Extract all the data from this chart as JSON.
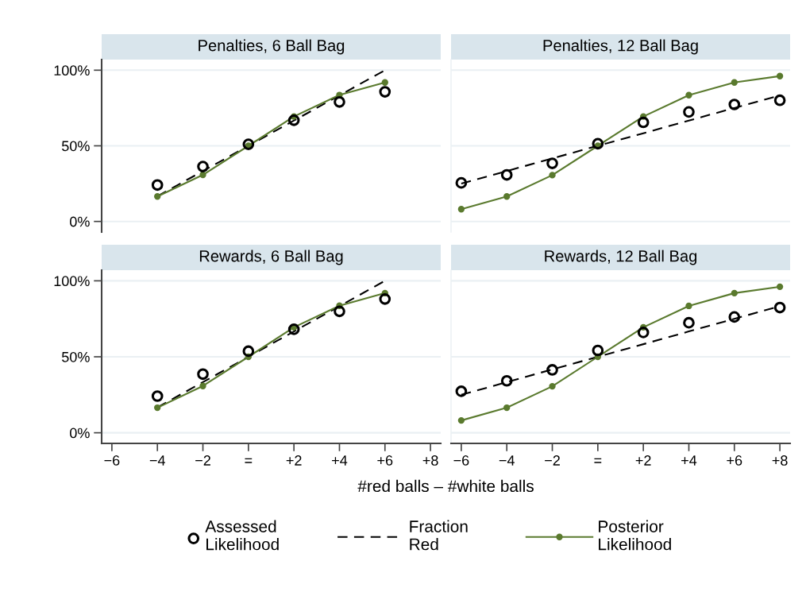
{
  "chart_data": [
    {
      "type": "line",
      "title": "Penalties, 6 Ball Bag",
      "x": [
        -4,
        -2,
        0,
        2,
        4,
        6
      ],
      "xlim": [
        -6.45,
        8.45
      ],
      "ylim": [
        -7,
        107
      ],
      "yticks": [
        {
          "value": 0,
          "label": "0%"
        },
        {
          "value": 50,
          "label": "50%"
        },
        {
          "value": 100,
          "label": "100%"
        }
      ],
      "grid": "y",
      "tick_labels": "y",
      "series": [
        {
          "type": "scatter",
          "marker": "circle",
          "color": "#000000",
          "values": [
            24.1,
            36.3,
            51,
            66.9,
            79,
            85.7
          ]
        },
        {
          "type": "line",
          "line_style": "dashed",
          "marker": "none",
          "color": "#000000",
          "values": [
            16.7,
            33.3,
            50,
            66.7,
            83.3,
            100
          ]
        },
        {
          "type": "line",
          "line_style": "solid",
          "marker": "circle",
          "color": "#5a7a2e",
          "values": [
            16.5,
            30.8,
            50,
            69.4,
            83.6,
            91.9
          ]
        }
      ]
    },
    {
      "type": "line",
      "title": "Penalties, 12 Ball Bag",
      "x": [
        -6,
        -4,
        -2,
        0,
        2,
        4,
        6,
        8
      ],
      "xlim": [
        -6.45,
        8.45
      ],
      "ylim": [
        -7,
        107
      ],
      "yticks": [
        {
          "value": 0,
          "label": null
        },
        {
          "value": 50,
          "label": null
        },
        {
          "value": 100,
          "label": null
        }
      ],
      "grid": "y",
      "tick_labels": false,
      "series": [
        {
          "type": "scatter",
          "marker": "circle",
          "color": "#000000",
          "values": [
            25.5,
            30.8,
            38.4,
            51.4,
            65.5,
            72.4,
            77.3,
            80.1
          ]
        },
        {
          "type": "line",
          "line_style": "dashed",
          "marker": "none",
          "color": "#000000",
          "values": [
            25,
            33.3,
            41.7,
            50,
            58.3,
            66.7,
            75,
            83.3
          ]
        },
        {
          "type": "line",
          "line_style": "solid",
          "marker": "circle",
          "color": "#5a7a2e",
          "values": [
            8.1,
            16.5,
            30.6,
            50,
            69.4,
            83.5,
            91.9,
            96.1
          ]
        }
      ]
    },
    {
      "type": "line",
      "title": "Rewards, 6 Ball Bag",
      "xlabel": "#red balls – #white balls",
      "x": [
        -4,
        -2,
        0,
        2,
        4,
        6
      ],
      "xlim": [
        -6.45,
        8.45
      ],
      "ylim": [
        -7,
        107
      ],
      "xticks": [
        {
          "value": -6,
          "label": "−6"
        },
        {
          "value": -4,
          "label": "−4"
        },
        {
          "value": -2,
          "label": "−2"
        },
        {
          "value": 0,
          "label": "="
        },
        {
          "value": 2,
          "label": "+2"
        },
        {
          "value": 4,
          "label": "+4"
        },
        {
          "value": 6,
          "label": "+6"
        },
        {
          "value": 8,
          "label": "+8"
        }
      ],
      "yticks": [
        {
          "value": 0,
          "label": "0%"
        },
        {
          "value": 50,
          "label": "50%"
        },
        {
          "value": 100,
          "label": "100%"
        }
      ],
      "grid": "y",
      "series": [
        {
          "type": "scatter",
          "marker": "circle",
          "color": "#000000",
          "values": [
            24.1,
            38.6,
            53.7,
            68.1,
            79.9,
            88
          ]
        },
        {
          "type": "line",
          "line_style": "dashed",
          "marker": "none",
          "color": "#000000",
          "values": [
            16.7,
            33.3,
            50,
            66.7,
            83.3,
            100
          ]
        },
        {
          "type": "line",
          "line_style": "solid",
          "marker": "circle",
          "color": "#5a7a2e",
          "values": [
            16.5,
            30.8,
            50,
            69.4,
            83.6,
            91.9
          ]
        }
      ]
    },
    {
      "type": "line",
      "title": "Rewards, 12 Ball Bag",
      "x": [
        -6,
        -4,
        -2,
        0,
        2,
        4,
        6,
        8
      ],
      "xlim": [
        -6.45,
        8.45
      ],
      "ylim": [
        -7,
        107
      ],
      "xticks": [
        {
          "value": -6,
          "label": "−6"
        },
        {
          "value": -4,
          "label": "−4"
        },
        {
          "value": -2,
          "label": "−2"
        },
        {
          "value": 0,
          "label": "="
        },
        {
          "value": 2,
          "label": "+2"
        },
        {
          "value": 4,
          "label": "+4"
        },
        {
          "value": 6,
          "label": "+6"
        },
        {
          "value": 8,
          "label": "+8"
        }
      ],
      "yticks": [
        {
          "value": 0,
          "label": null
        },
        {
          "value": 50,
          "label": null
        },
        {
          "value": 100,
          "label": null
        }
      ],
      "grid": "y",
      "tick_labels": "x",
      "legend": "bottom",
      "series": [
        {
          "name": "Assessed\nLikelihood",
          "type": "scatter",
          "marker": "circle",
          "color": "#000000",
          "values": [
            27.3,
            34.2,
            41.4,
            54.2,
            66,
            72.4,
            76.2,
            82.4
          ]
        },
        {
          "name": "Fraction\nRed",
          "type": "line",
          "line_style": "dashed",
          "marker": "none",
          "color": "#000000",
          "values": [
            25,
            33.3,
            41.7,
            50,
            58.3,
            66.7,
            75,
            83.3
          ]
        },
        {
          "name": "Posterior\nLikelihood",
          "type": "line",
          "line_style": "solid",
          "marker": "circle",
          "color": "#5a7a2e",
          "values": [
            8.1,
            16.5,
            30.6,
            50,
            69.4,
            83.5,
            91.9,
            96.1
          ]
        }
      ]
    }
  ]
}
